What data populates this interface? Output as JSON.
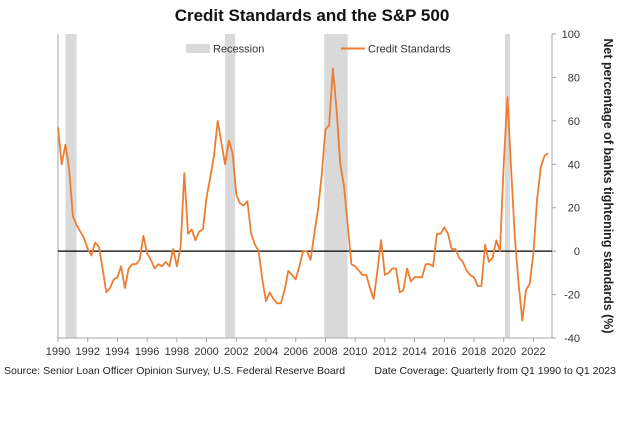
{
  "chart_data": {
    "type": "line",
    "title": "Credit Standards and the S&P 500",
    "ylabel": "Net percentage of banks tightening standards (%)",
    "xlabel": "",
    "ylim": [
      -40,
      100
    ],
    "xlim": [
      1990,
      2023.25
    ],
    "y_ticks": [
      -40,
      -20,
      0,
      20,
      40,
      60,
      80,
      100
    ],
    "x_ticks": [
      1990,
      1992,
      1994,
      1996,
      1998,
      2000,
      2002,
      2004,
      2006,
      2008,
      2010,
      2012,
      2014,
      2016,
      2018,
      2020,
      2022
    ],
    "y_axis_side": "right",
    "legend": {
      "placement": "top",
      "recession_label": "Recession",
      "series_label": "Credit Standards"
    },
    "colors": {
      "series": "#ed7d31",
      "recession": "#d9d9d9",
      "zero_line": "#000000",
      "axis": "#a6a6a6"
    },
    "recessions": [
      {
        "start": 1990.5,
        "end": 1991.25
      },
      {
        "start": 2001.25,
        "end": 2001.92
      },
      {
        "start": 2007.92,
        "end": 2009.5
      },
      {
        "start": 2020.08,
        "end": 2020.42
      }
    ],
    "series": [
      {
        "name": "Credit Standards",
        "points": [
          [
            1990.0,
            57
          ],
          [
            1990.25,
            40
          ],
          [
            1990.5,
            49
          ],
          [
            1990.75,
            38
          ],
          [
            1991.0,
            16
          ],
          [
            1991.25,
            12
          ],
          [
            1991.5,
            9
          ],
          [
            1991.75,
            6
          ],
          [
            1992.0,
            1
          ],
          [
            1992.25,
            -2
          ],
          [
            1992.5,
            4
          ],
          [
            1992.75,
            2
          ],
          [
            1993.0,
            -8
          ],
          [
            1993.25,
            -19
          ],
          [
            1993.5,
            -17
          ],
          [
            1993.75,
            -13
          ],
          [
            1994.0,
            -12
          ],
          [
            1994.25,
            -7
          ],
          [
            1994.5,
            -17
          ],
          [
            1994.75,
            -8
          ],
          [
            1995.0,
            -6
          ],
          [
            1995.25,
            -6
          ],
          [
            1995.5,
            -4
          ],
          [
            1995.75,
            7
          ],
          [
            1996.0,
            -1
          ],
          [
            1996.25,
            -4
          ],
          [
            1996.5,
            -8
          ],
          [
            1996.75,
            -6
          ],
          [
            1997.0,
            -7
          ],
          [
            1997.25,
            -5
          ],
          [
            1997.5,
            -7
          ],
          [
            1997.75,
            1
          ],
          [
            1998.0,
            -7
          ],
          [
            1998.25,
            2
          ],
          [
            1998.5,
            36
          ],
          [
            1998.75,
            8
          ],
          [
            1999.0,
            10
          ],
          [
            1999.25,
            5
          ],
          [
            1999.5,
            9
          ],
          [
            1999.75,
            10
          ],
          [
            2000.0,
            25
          ],
          [
            2000.25,
            34
          ],
          [
            2000.5,
            44
          ],
          [
            2000.75,
            60
          ],
          [
            2001.0,
            50
          ],
          [
            2001.25,
            40
          ],
          [
            2001.5,
            51
          ],
          [
            2001.75,
            45
          ],
          [
            2002.0,
            26
          ],
          [
            2002.25,
            22
          ],
          [
            2002.5,
            21
          ],
          [
            2002.75,
            23
          ],
          [
            2003.0,
            8
          ],
          [
            2003.25,
            3
          ],
          [
            2003.5,
            0
          ],
          [
            2003.75,
            -13
          ],
          [
            2004.0,
            -23
          ],
          [
            2004.25,
            -19
          ],
          [
            2004.5,
            -22
          ],
          [
            2004.75,
            -24
          ],
          [
            2005.0,
            -24
          ],
          [
            2005.25,
            -18
          ],
          [
            2005.5,
            -9
          ],
          [
            2005.75,
            -11
          ],
          [
            2006.0,
            -13
          ],
          [
            2006.25,
            -7
          ],
          [
            2006.5,
            0
          ],
          [
            2006.75,
            0
          ],
          [
            2007.0,
            -4
          ],
          [
            2007.25,
            8
          ],
          [
            2007.5,
            19
          ],
          [
            2007.75,
            35
          ],
          [
            2008.0,
            56
          ],
          [
            2008.25,
            58
          ],
          [
            2008.5,
            84
          ],
          [
            2008.75,
            65
          ],
          [
            2009.0,
            40
          ],
          [
            2009.25,
            30
          ],
          [
            2009.5,
            12
          ],
          [
            2009.75,
            -6
          ],
          [
            2010.0,
            -7
          ],
          [
            2010.25,
            -9
          ],
          [
            2010.5,
            -11
          ],
          [
            2010.75,
            -11
          ],
          [
            2011.0,
            -17
          ],
          [
            2011.25,
            -22
          ],
          [
            2011.5,
            -9
          ],
          [
            2011.75,
            5
          ],
          [
            2012.0,
            -11
          ],
          [
            2012.25,
            -10
          ],
          [
            2012.5,
            -8
          ],
          [
            2012.75,
            -8
          ],
          [
            2013.0,
            -19
          ],
          [
            2013.25,
            -18
          ],
          [
            2013.5,
            -8
          ],
          [
            2013.75,
            -14
          ],
          [
            2014.0,
            -12
          ],
          [
            2014.25,
            -12
          ],
          [
            2014.5,
            -12
          ],
          [
            2014.75,
            -6
          ],
          [
            2015.0,
            -6
          ],
          [
            2015.25,
            -7
          ],
          [
            2015.5,
            8
          ],
          [
            2015.75,
            8
          ],
          [
            2016.0,
            11
          ],
          [
            2016.25,
            8
          ],
          [
            2016.5,
            1
          ],
          [
            2016.75,
            1
          ],
          [
            2017.0,
            -3
          ],
          [
            2017.25,
            -5
          ],
          [
            2017.5,
            -9
          ],
          [
            2017.75,
            -11
          ],
          [
            2018.0,
            -12
          ],
          [
            2018.25,
            -16
          ],
          [
            2018.5,
            -16
          ],
          [
            2018.75,
            3
          ],
          [
            2019.0,
            -5
          ],
          [
            2019.25,
            -3
          ],
          [
            2019.5,
            5
          ],
          [
            2019.75,
            0
          ],
          [
            2020.0,
            40
          ],
          [
            2020.25,
            71
          ],
          [
            2020.5,
            38
          ],
          [
            2020.75,
            6
          ],
          [
            2021.0,
            -15
          ],
          [
            2021.25,
            -32
          ],
          [
            2021.5,
            -18
          ],
          [
            2021.75,
            -15
          ],
          [
            2022.0,
            -1
          ],
          [
            2022.25,
            24
          ],
          [
            2022.5,
            39
          ],
          [
            2022.75,
            44
          ],
          [
            2023.0,
            45
          ]
        ]
      }
    ],
    "source": "Source: Senior Loan Officer Opinion Survey, U.S. Federal Reserve Board",
    "coverage": "Date Coverage: Quarterly from Q1 1990 to Q1 2023"
  }
}
